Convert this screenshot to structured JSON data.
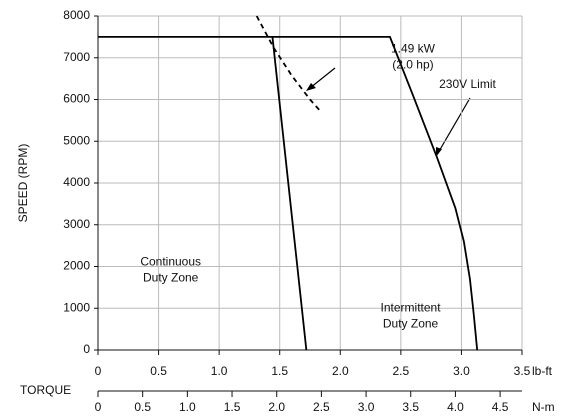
{
  "chart_data": {
    "type": "line",
    "ylabel": "SPEED (RPM)",
    "xlabel": "lb-ft",
    "x2title": "TORQUE",
    "x2label": "N-m",
    "xlim": [
      0,
      3.5
    ],
    "xticks": [
      0,
      0.5,
      {
        "value": 1,
        "label": "1.0"
      },
      1.5,
      {
        "value": 2,
        "label": "2.0"
      },
      2.5,
      {
        "value": 3,
        "label": "3.0"
      },
      3.5
    ],
    "ylim": [
      0,
      8000
    ],
    "yticks": [
      0,
      1000,
      2000,
      3000,
      4000,
      5000,
      6000,
      7000,
      8000
    ],
    "x2lim": [
      0,
      4.745
    ],
    "x2ticks": [
      0,
      0.5,
      {
        "value": 1,
        "label": "1.0"
      },
      1.5,
      {
        "value": 2,
        "label": "2.0"
      },
      2.5,
      {
        "value": 3,
        "label": "3.0"
      },
      3.5,
      {
        "value": 4,
        "label": "4.0"
      },
      4.5
    ],
    "grid": true,
    "series": [
      {
        "color": "#000000",
        "dashed": false,
        "x": [
          1.44,
          1.72
        ],
        "values": [
          7500,
          0
        ]
      },
      {
        "color": "#000000",
        "dashed": false,
        "x": [
          0,
          2.41,
          2.6,
          2.8,
          2.95,
          3.02,
          3.07,
          3.1,
          3.12,
          3.13
        ],
        "values": [
          7500,
          7500,
          6100,
          4600,
          3400,
          2600,
          1700,
          900,
          300,
          0
        ]
      },
      {
        "color": "#000000",
        "dashed": true,
        "x": [
          1.31,
          1.45,
          1.6,
          1.75,
          1.83
        ],
        "values": [
          8000,
          7240,
          6570,
          6000,
          5740
        ]
      }
    ],
    "annotations": [
      {
        "lines": [
          "1.49 kW",
          "(2.0 hp)"
        ],
        "x": 2.6,
        "y": 7200
      },
      {
        "lines": [
          "230V Limit"
        ],
        "x": 3.05,
        "y": 6350
      },
      {
        "lines": [
          "Continuous",
          "Duty Zone"
        ],
        "x": 0.6,
        "y": 2100
      },
      {
        "lines": [
          "Intermittent",
          "Duty Zone"
        ],
        "x": 2.58,
        "y": 1000
      }
    ]
  }
}
